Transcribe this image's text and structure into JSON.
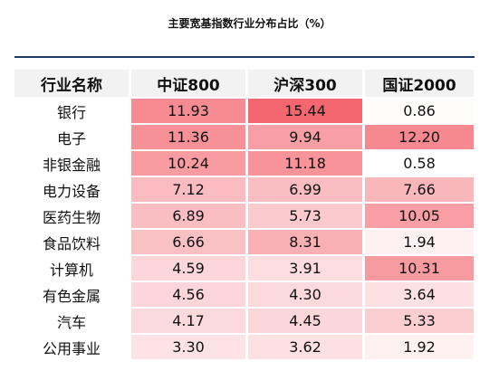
{
  "title": "主要宽基指数行业分布占比（%）",
  "colors": {
    "high": "#f46770",
    "low": "#ffffff",
    "rule": "#1f3864",
    "header_bg": "#f2f2f2"
  },
  "chart_data": {
    "type": "heatmap",
    "title": "主要宽基指数行业分布占比（%）",
    "row_header": "行业名称",
    "columns": [
      "中证800",
      "沪深300",
      "国证2000"
    ],
    "rows": [
      "银行",
      "电子",
      "非银金融",
      "电力设备",
      "医药生物",
      "食品饮料",
      "计算机",
      "有色金属",
      "汽车",
      "公用事业"
    ],
    "values": [
      [
        "11.93",
        "15.44",
        "0.86"
      ],
      [
        "11.36",
        "9.94",
        "12.20"
      ],
      [
        "10.24",
        "11.18",
        "0.58"
      ],
      [
        "7.12",
        "6.99",
        "7.66"
      ],
      [
        "6.89",
        "5.73",
        "10.05"
      ],
      [
        "6.66",
        "8.31",
        "1.94"
      ],
      [
        "4.59",
        "3.91",
        "10.31"
      ],
      [
        "4.56",
        "4.30",
        "3.64"
      ],
      [
        "4.17",
        "4.45",
        "5.33"
      ],
      [
        "3.30",
        "3.62",
        "1.92"
      ]
    ]
  }
}
